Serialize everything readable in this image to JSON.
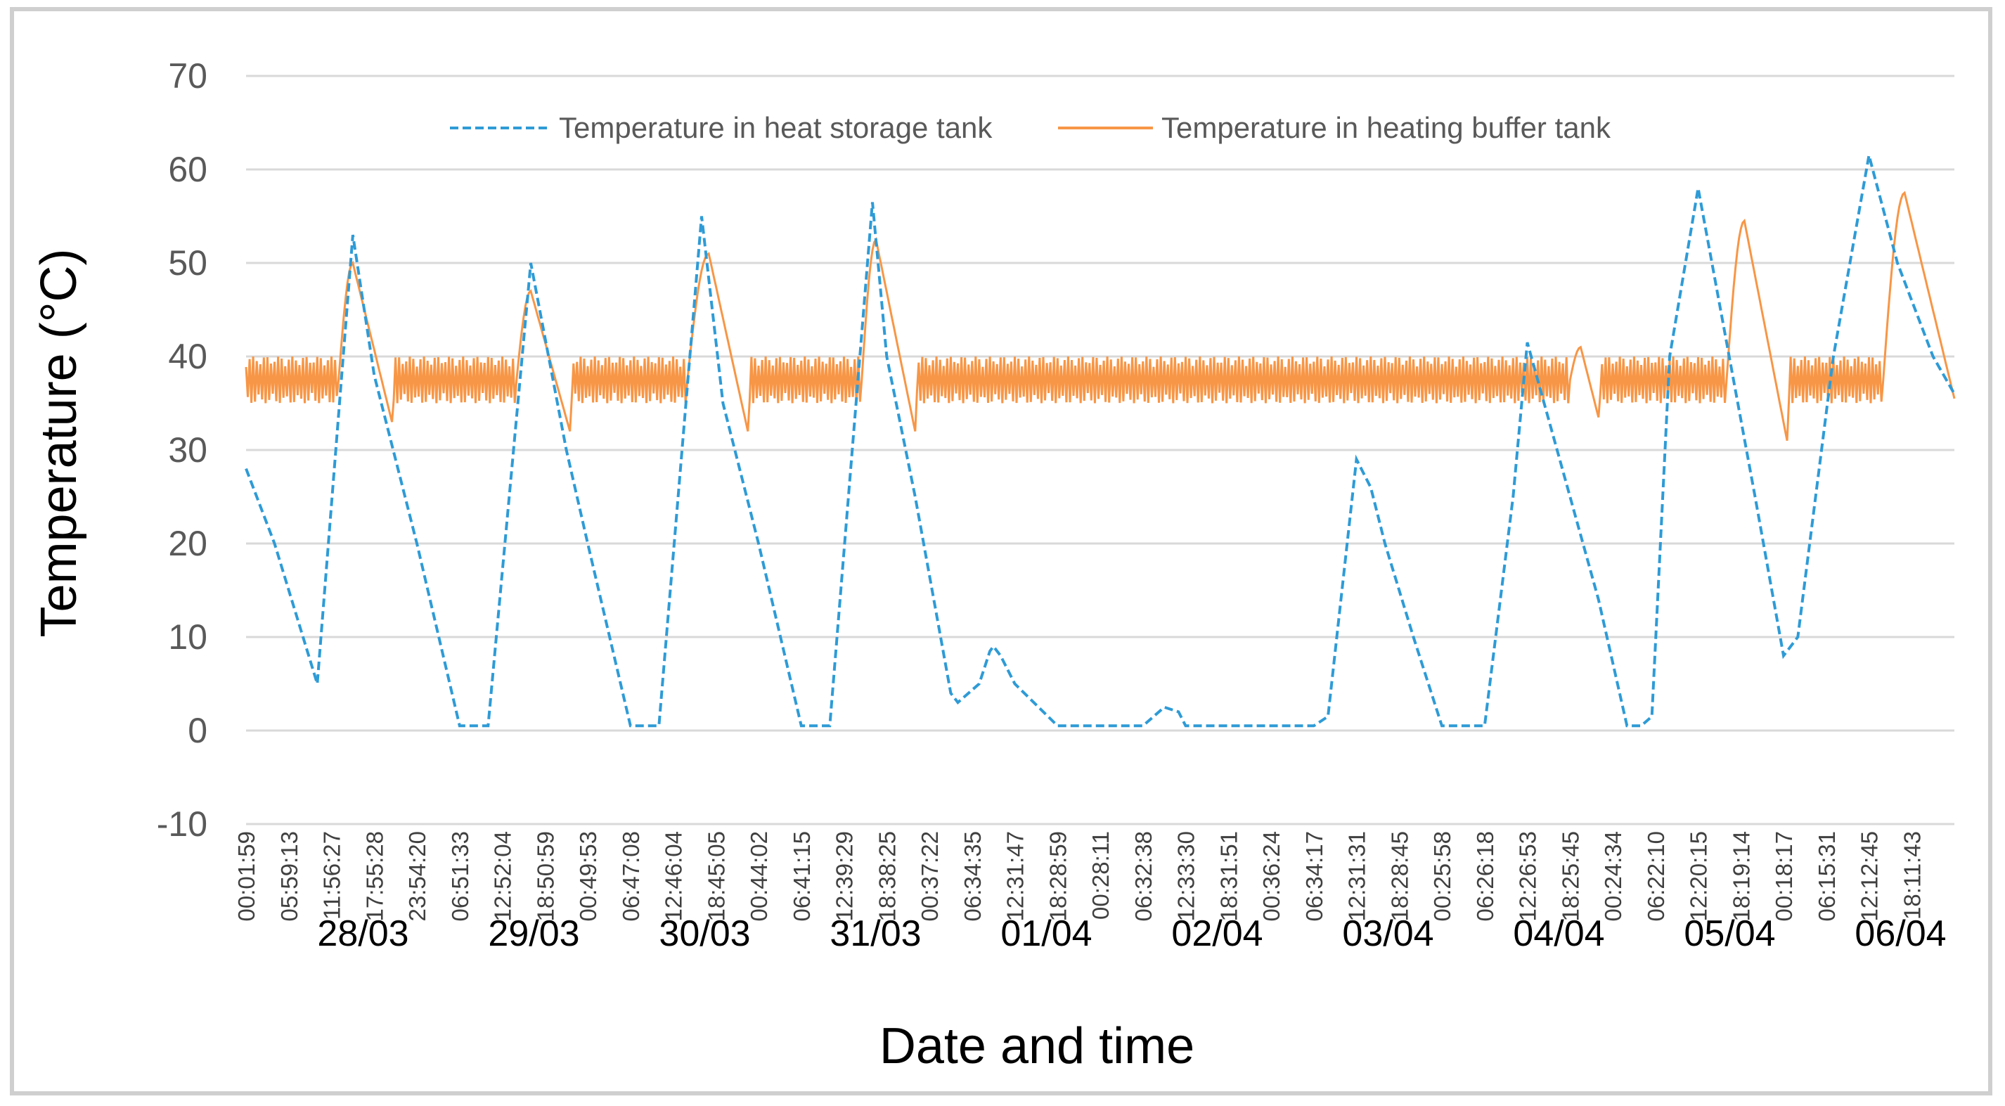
{
  "chart_data": {
    "type": "line",
    "title": "",
    "xlabel": "Date and time",
    "ylabel": "Temperature (°C)",
    "ylim": [
      -10,
      70
    ],
    "yticks": [
      -10,
      0,
      10,
      20,
      30,
      40,
      50,
      60,
      70
    ],
    "grid": true,
    "legend_position": "top",
    "x_tick_labels": [
      "00:01:59",
      "05:59:13",
      "11:56:27",
      "17:55:28",
      "23:54:20",
      "06:51:33",
      "12:52:04",
      "18:50:59",
      "00:49:53",
      "06:47:08",
      "12:46:04",
      "18:45:05",
      "00:44:02",
      "06:41:15",
      "12:39:29",
      "18:38:25",
      "00:37:22",
      "06:34:35",
      "12:31:47",
      "18:28:59",
      "00:28:11",
      "06:32:38",
      "12:33:30",
      "18:31:51",
      "00:36:24",
      "06:34:17",
      "12:31:31",
      "18:28:45",
      "00:25:58",
      "06:26:18",
      "12:26:53",
      "18:25:45",
      "00:24:34",
      "06:22:10",
      "12:20:15",
      "18:19:14",
      "00:18:17",
      "06:15:31",
      "12:12:45",
      "18:11:43"
    ],
    "date_labels": [
      "28/03",
      "29/03",
      "30/03",
      "31/03",
      "01/04",
      "02/04",
      "03/04",
      "04/04",
      "05/04",
      "06/04"
    ],
    "x_units": "hours since 28/03 00:00",
    "x_range": [
      0,
      240
    ],
    "series": [
      {
        "name": "Temperature in heat storage tank",
        "color": "#2e9bd6",
        "style": "dashed",
        "x": [
          0,
          4,
          10,
          15,
          18,
          24,
          30,
          34,
          40,
          45,
          48,
          54,
          58,
          64,
          67,
          72,
          78,
          82,
          88,
          90,
          94,
          99,
          100,
          103,
          104.5,
          105,
          106,
          108,
          114,
          118,
          120,
          126,
          129,
          131,
          132,
          135,
          144,
          150,
          152,
          156,
          158,
          160,
          164,
          168,
          170,
          174,
          178,
          180,
          186,
          190,
          194,
          196,
          197.5,
          200,
          204,
          212,
          216,
          218,
          223,
          228,
          232,
          237,
          240
        ],
        "y": [
          28,
          20,
          5,
          53,
          38,
          20,
          0.5,
          0.5,
          50,
          30,
          20,
          0.5,
          0.5,
          55,
          35,
          20,
          0.5,
          0.5,
          56.5,
          40,
          25,
          4,
          3,
          5,
          8.5,
          9,
          8,
          5,
          0.5,
          0.5,
          0.5,
          0.5,
          2.5,
          2,
          0.5,
          0.5,
          0.5,
          0.5,
          1.5,
          29,
          26,
          20,
          10,
          0.5,
          0.5,
          0.5,
          25,
          41.5,
          25,
          14,
          0.5,
          0.5,
          1.5,
          40,
          58,
          25,
          8,
          10,
          40,
          61.5,
          50,
          40,
          36
        ]
      },
      {
        "name": "Temperature in heating buffer tank",
        "color": "#f79646",
        "style": "solid",
        "baseline": 37.5,
        "oscillation_amplitude": 2.5,
        "peaks": [
          {
            "start": 13,
            "peak_x": 15,
            "peak_y": 50,
            "end": 20.5,
            "end_y": 33
          },
          {
            "start": 38,
            "peak_x": 40,
            "peak_y": 47,
            "end": 45.5,
            "end_y": 32
          },
          {
            "start": 62,
            "peak_x": 65,
            "peak_y": 51,
            "end": 70.5,
            "end_y": 32
          },
          {
            "start": 86.5,
            "peak_x": 88.5,
            "peak_y": 52.5,
            "end": 94,
            "end_y": 32
          },
          {
            "start": 186,
            "peak_x": 187.5,
            "peak_y": 41,
            "end": 190,
            "end_y": 33.5
          },
          {
            "start": 208,
            "peak_x": 210.5,
            "peak_y": 54.5,
            "end": 216.5,
            "end_y": 31
          },
          {
            "start": 230,
            "peak_x": 233,
            "peak_y": 57.5,
            "end": 240,
            "end_y": 35.5
          }
        ]
      }
    ]
  }
}
